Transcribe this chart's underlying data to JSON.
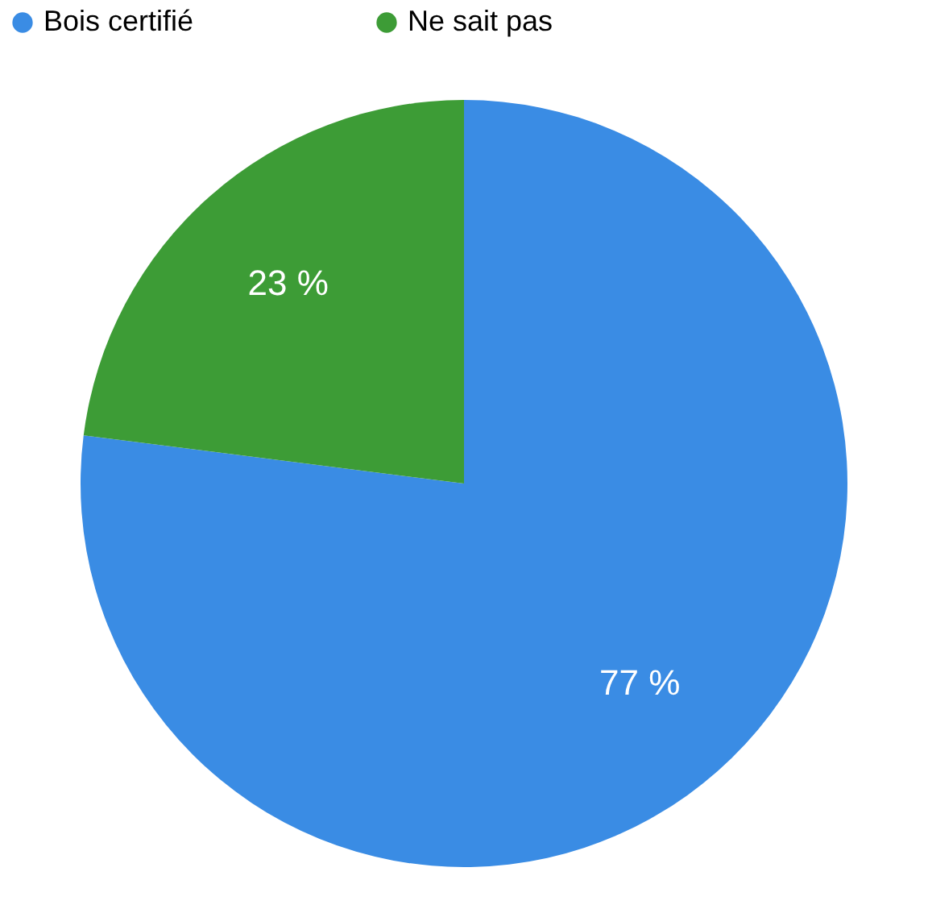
{
  "chart_data": {
    "type": "pie",
    "categories": [
      "Bois certifié",
      "Ne sait pas"
    ],
    "values": [
      77,
      23
    ],
    "colors": [
      "#3a8ce4",
      "#3d9c36"
    ],
    "value_labels": [
      "77 %",
      "23 %"
    ],
    "legend": "top"
  }
}
